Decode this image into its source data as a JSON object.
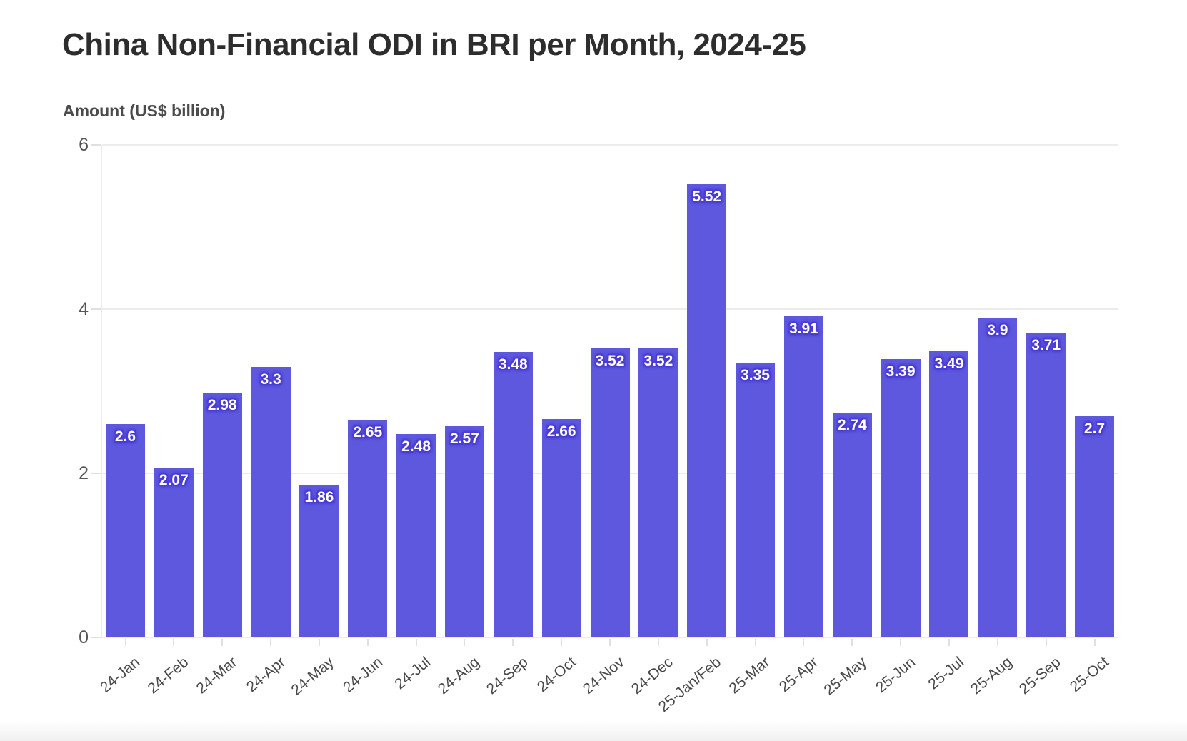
{
  "header": {
    "title": "China Non-Financial ODI in BRI per Month, 2024-25"
  },
  "chart_data": {
    "type": "bar",
    "title": "China Non-Financial ODI in BRI per Month, 2024-25",
    "ylabel": "Amount (US$ billion)",
    "xlabel": "",
    "categories": [
      "24-Jan",
      "24-Feb",
      "24-Mar",
      "24-Apr",
      "24-May",
      "24-Jun",
      "24-Jul",
      "24-Aug",
      "24-Sep",
      "24-Oct",
      "24-Nov",
      "24-Dec",
      "25-Jan/Feb",
      "25-Mar",
      "25-Apr",
      "25-May",
      "25-Jun",
      "25-Jul",
      "25-Aug",
      "25-Sep",
      "25-Oct"
    ],
    "values": [
      2.6,
      2.07,
      2.98,
      3.3,
      1.86,
      2.65,
      2.48,
      2.57,
      3.48,
      2.66,
      3.52,
      3.52,
      5.52,
      3.35,
      3.91,
      2.74,
      3.39,
      3.49,
      3.9,
      3.71,
      2.7
    ],
    "yticks": [
      0,
      2,
      4,
      6
    ],
    "ylim": [
      0,
      6
    ],
    "grid": true,
    "legend": false,
    "bar_color": "#5d58de",
    "value_label_color": "#ffffff",
    "value_label_halo_color": "#4a3bd4",
    "grid_color": "#ececec",
    "tick_label_color": "#555555"
  }
}
